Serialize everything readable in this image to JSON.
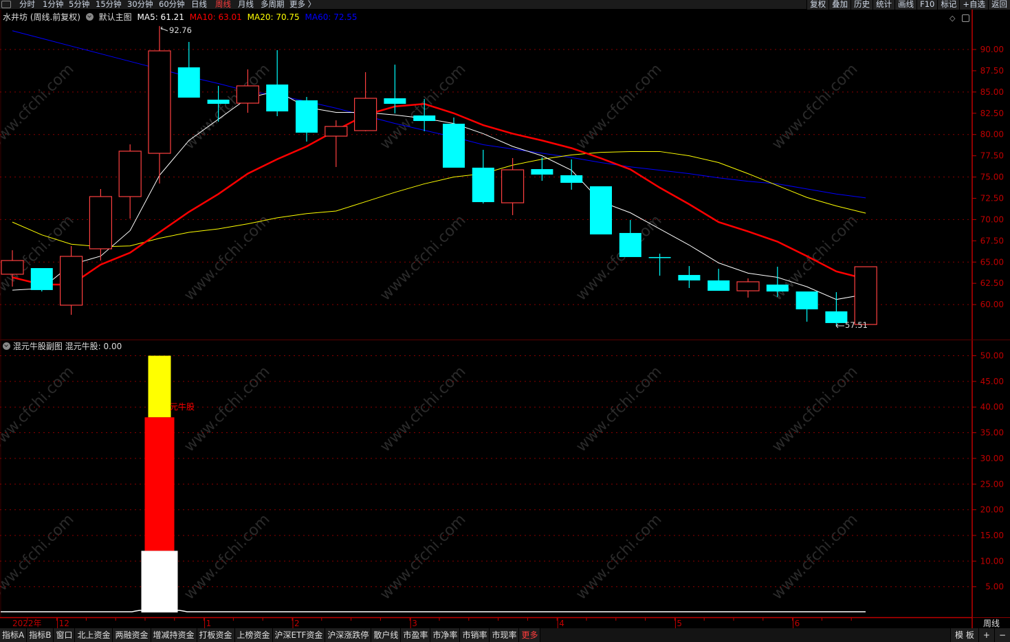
{
  "topbar": {
    "tabs": [
      "分时",
      "1分钟",
      "5分钟",
      "15分钟",
      "30分钟",
      "60分钟",
      "日线",
      "周线",
      "月线",
      "多周期",
      "更多 〉"
    ],
    "active": "周线",
    "right_buttons": [
      "复权",
      "叠加",
      "历史",
      "统计",
      "画线",
      "F10",
      "标记",
      "+自选",
      "返回"
    ]
  },
  "info": {
    "title": "水井坊 (周线.前复权)",
    "template": "默认主图",
    "ma5": "MA5: 61.21",
    "ma10": "MA10: 63.01",
    "ma20": "MA20: 70.75",
    "ma60": "MA60: 72.55"
  },
  "colors": {
    "up": "#ff4040",
    "down": "#00ffff",
    "ma5": "#ffffff",
    "ma10": "#ff0000",
    "ma20": "#ffff00",
    "ma60": "#0000ff",
    "axis": "#c00000",
    "grid": "#8b0000"
  },
  "main_chart": {
    "y_ticks": [
      "90.00",
      "87.50",
      "85.00",
      "82.50",
      "80.00",
      "77.50",
      "75.00",
      "72.50",
      "70.00",
      "67.50",
      "65.00",
      "62.50",
      "60.00"
    ],
    "high_label": "92.76",
    "low_label": "57.51",
    "candles_ohlc": [
      [
        63.57,
        66.39,
        62.11,
        65.18
      ],
      [
        64.29,
        64.29,
        61.54,
        61.71
      ],
      [
        59.93,
        66.88,
        58.8,
        65.67
      ],
      [
        66.56,
        73.59,
        65.18,
        72.7
      ],
      [
        72.7,
        78.84,
        70.11,
        78.04
      ],
      [
        77.79,
        92.76,
        74.24,
        89.84
      ],
      [
        87.9,
        90.89,
        84.34,
        84.34
      ],
      [
        84.1,
        85.72,
        81.51,
        83.61
      ],
      [
        83.69,
        87.66,
        82.56,
        85.72
      ],
      [
        85.88,
        89.92,
        82.16,
        82.72
      ],
      [
        84.02,
        84.42,
        79.17,
        80.22
      ],
      [
        79.81,
        81.67,
        76.18,
        80.95
      ],
      [
        80.46,
        87.33,
        80.38,
        84.26
      ],
      [
        84.26,
        88.22,
        82.48,
        83.61
      ],
      [
        82.24,
        84.18,
        80.38,
        81.59
      ],
      [
        81.27,
        82.0,
        76.1,
        76.1
      ],
      [
        76.1,
        78.2,
        71.89,
        72.05
      ],
      [
        71.97,
        77.23,
        70.52,
        75.85
      ],
      [
        75.93,
        77.31,
        74.56,
        75.29
      ],
      [
        75.21,
        77.07,
        73.51,
        74.32
      ],
      [
        73.91,
        73.91,
        68.25,
        68.25
      ],
      [
        68.42,
        69.95,
        65.59,
        65.59
      ],
      [
        65.59,
        65.99,
        63.4,
        65.5
      ],
      [
        63.48,
        64.53,
        61.95,
        62.84
      ],
      [
        62.84,
        64.21,
        61.62,
        61.62
      ],
      [
        61.62,
        63.08,
        60.82,
        62.68
      ],
      [
        62.35,
        64.45,
        60.9,
        61.54
      ],
      [
        61.54,
        61.54,
        57.99,
        59.44
      ],
      [
        59.2,
        61.46,
        57.51,
        57.83
      ],
      [
        57.66,
        64.45,
        57.66,
        64.45
      ]
    ],
    "ma5": [
      61.7,
      61.9,
      64.7,
      65.7,
      68.7,
      75.2,
      79.3,
      81.8,
      84.3,
      85.1,
      83.2,
      82.6,
      82.6,
      82.3,
      81.9,
      81.3,
      80.1,
      78.6,
      77.5,
      75.8,
      72.1,
      70.8,
      68.9,
      67.0,
      64.9,
      63.7,
      63.2,
      62.1,
      60.6,
      61.21
    ],
    "ma10": [
      63.2,
      62.35,
      62.35,
      64.7,
      66.1,
      68.5,
      70.9,
      73.0,
      75.4,
      77.1,
      78.6,
      80.5,
      82.3,
      83.3,
      83.6,
      82.5,
      81.1,
      80.1,
      79.3,
      78.4,
      77.2,
      75.9,
      73.75,
      71.8,
      69.7,
      68.6,
      67.4,
      65.7,
      63.9,
      63.01
    ],
    "ma20": [
      69.7,
      68.2,
      67.1,
      66.8,
      66.9,
      67.8,
      68.5,
      68.9,
      69.5,
      70.2,
      70.7,
      71.0,
      72.1,
      73.2,
      74.2,
      75.0,
      75.4,
      76.4,
      77.1,
      77.6,
      77.9,
      78.0,
      78.0,
      77.5,
      76.7,
      75.4,
      74.0,
      72.6,
      71.6,
      70.75
    ],
    "ma60": [
      92.2,
      91.3,
      90.4,
      89.5,
      88.6,
      87.7,
      86.8,
      86.0,
      85.1,
      84.6,
      83.9,
      83.1,
      82.2,
      81.3,
      80.5,
      79.7,
      78.8,
      78.3,
      77.8,
      77.3,
      76.7,
      76.2,
      75.8,
      75.4,
      74.9,
      74.5,
      74.2,
      73.6,
      73.0,
      72.55
    ]
  },
  "sub_chart": {
    "header": "混元牛股副图",
    "value_label": "混元牛股: 0.00",
    "bar_label": "元牛股",
    "y_ticks": [
      "50.00",
      "45.00",
      "40.00",
      "35.00",
      "30.00",
      "25.00",
      "20.00",
      "15.00",
      "10.00",
      "5.00"
    ],
    "bar_index": 5,
    "white": 12.0,
    "red": 38.0,
    "yellow": 50.0
  },
  "date_axis": [
    {
      "label": "2022年",
      "i": 0
    },
    {
      "label": "12",
      "i": 2
    },
    {
      "label": "1",
      "i": 7
    },
    {
      "label": "2",
      "i": 10
    },
    {
      "label": "3",
      "i": 14
    },
    {
      "label": "4",
      "i": 19
    },
    {
      "label": "5",
      "i": 23
    },
    {
      "label": "6",
      "i": 27
    }
  ],
  "period_label": "周线",
  "watermark": "www.cfchi.com",
  "bottombar": {
    "items": [
      "指标A",
      "指标B",
      "窗口",
      "北上资金",
      "两融资金",
      "增减持资金",
      "打板资金",
      "上榜资金",
      "沪深ETF资金",
      "沪深涨跌停",
      "散户线",
      "市盈率",
      "市净率",
      "市销率",
      "市现率",
      "更多"
    ],
    "right": [
      "模 板",
      "+",
      "−"
    ]
  }
}
